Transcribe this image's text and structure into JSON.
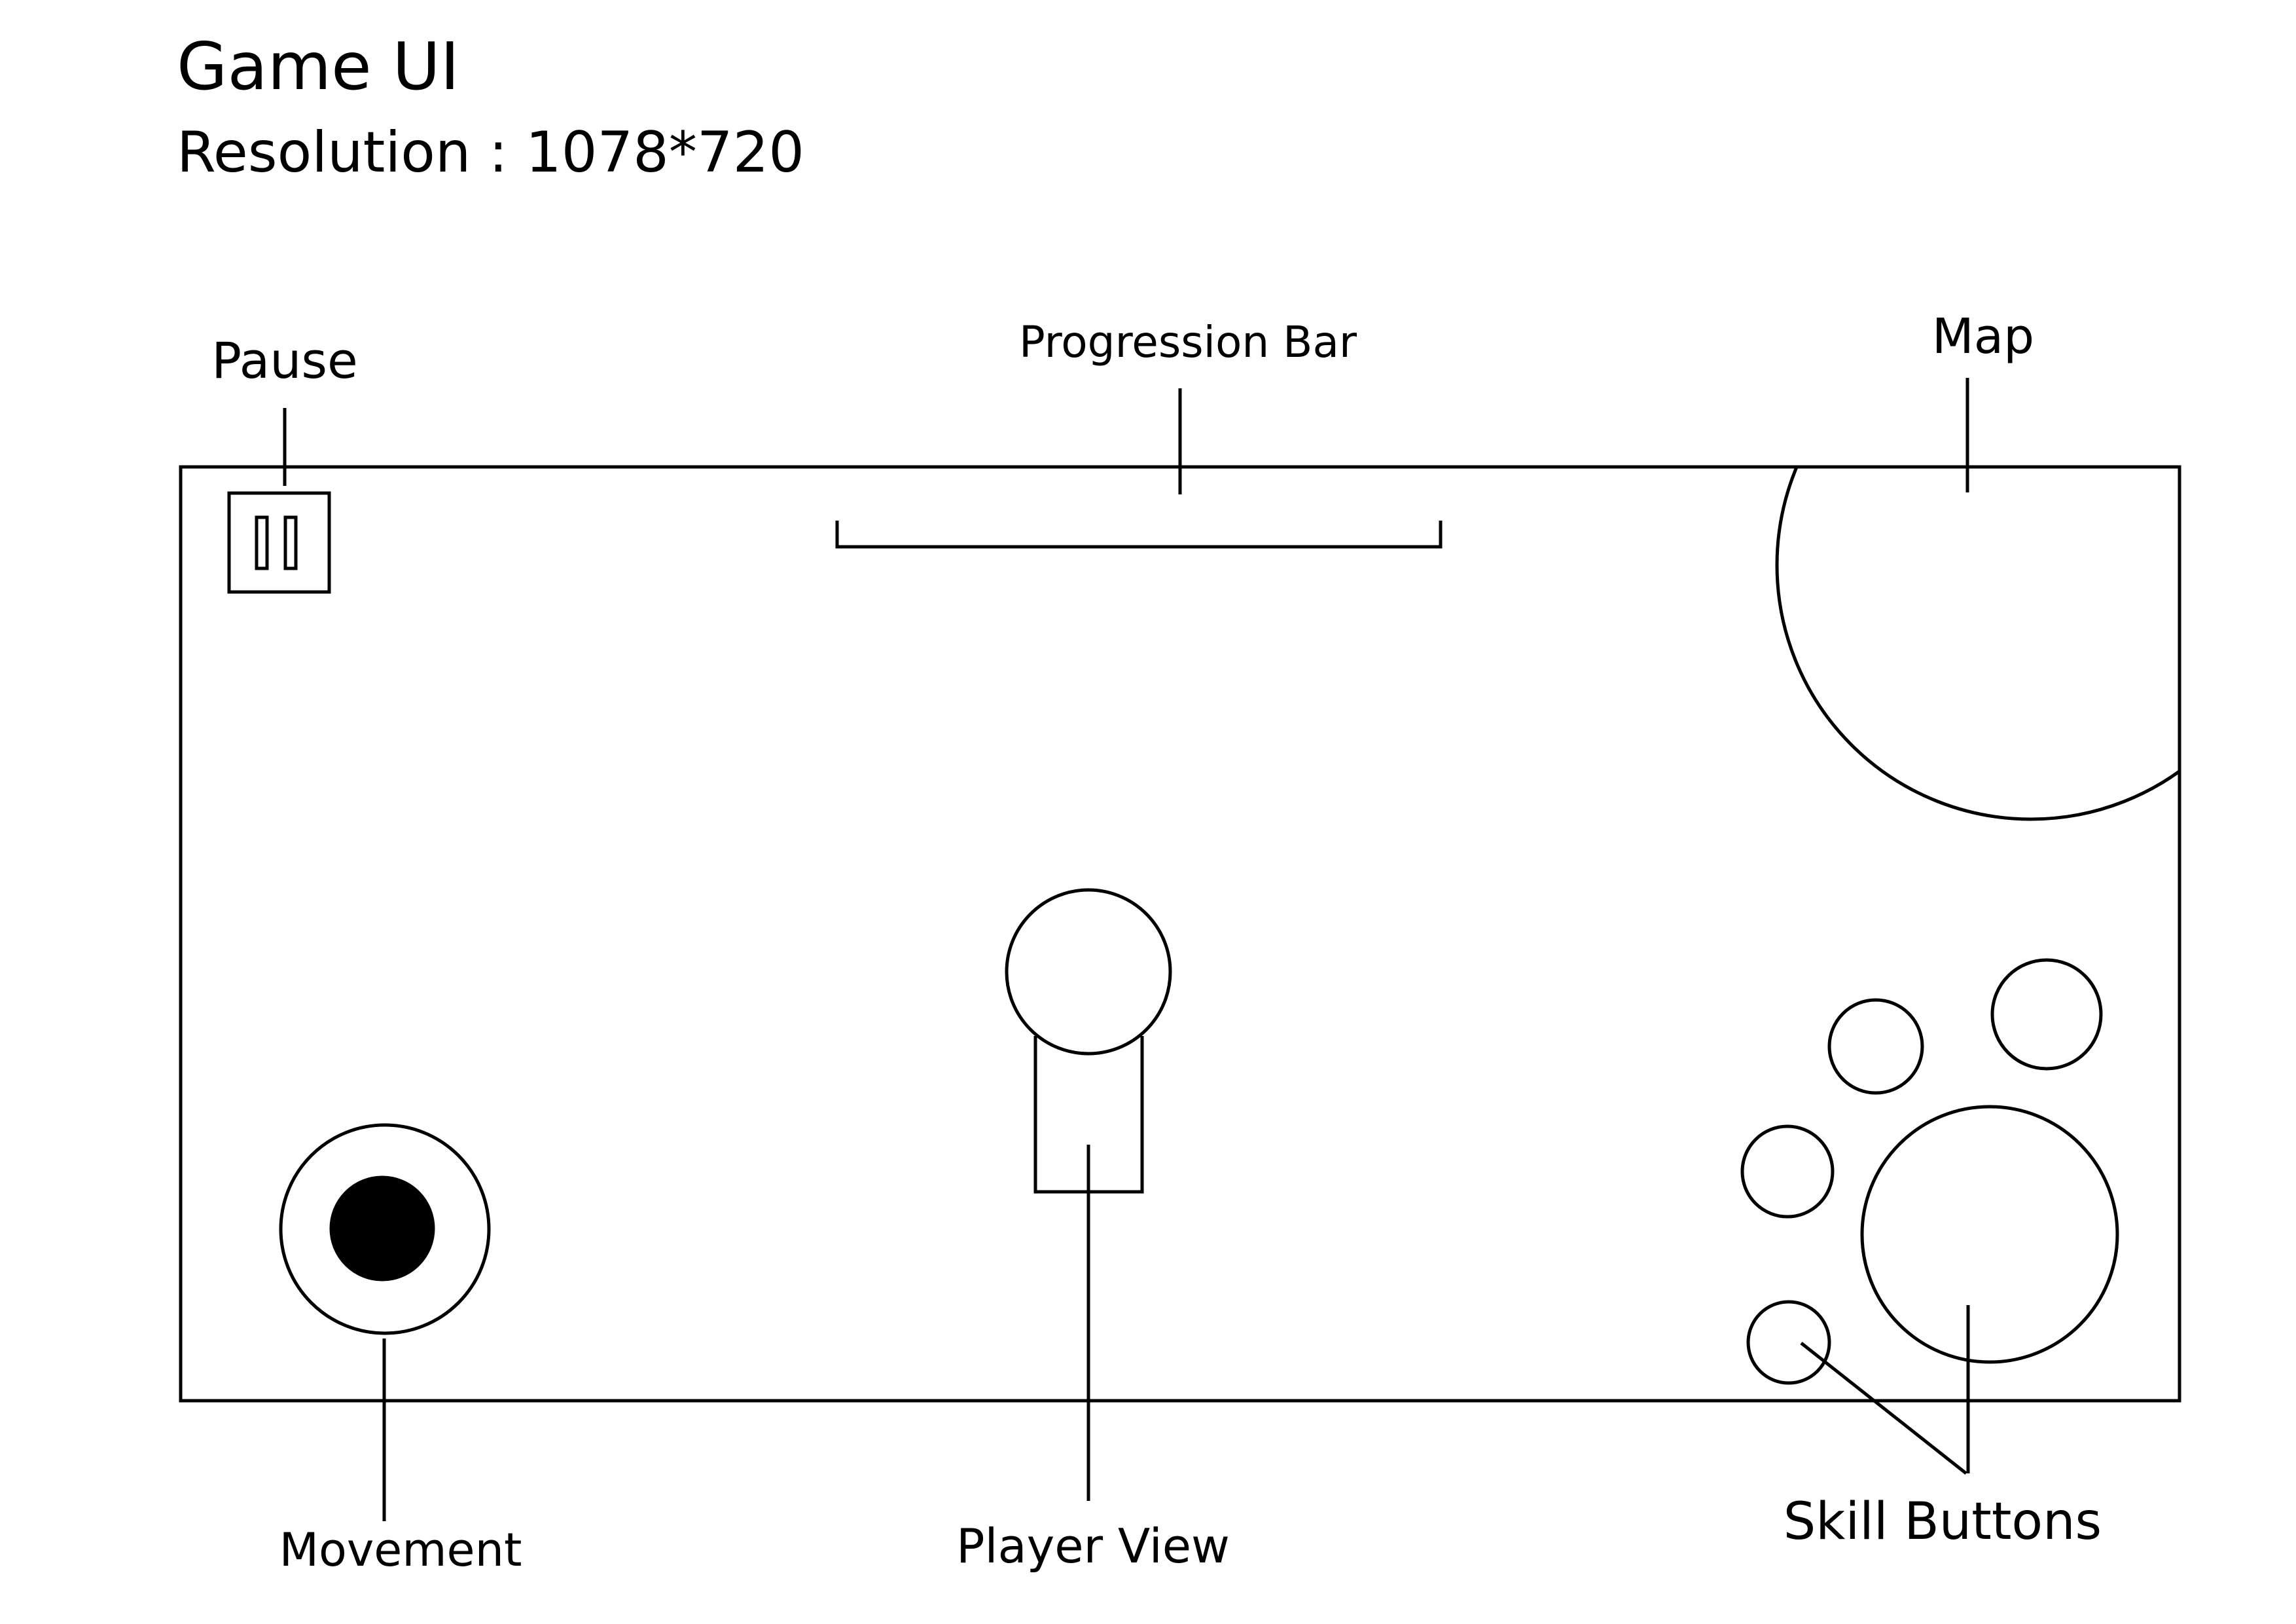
{
  "header": {
    "title": "Game UI",
    "resolution": "Resolution : 1078*720"
  },
  "callouts": {
    "pause": "Pause",
    "progression_bar": "Progression Bar",
    "map": "Map",
    "movement": "Movement",
    "player_view": "Player View",
    "skill_buttons": "Skill Buttons"
  }
}
